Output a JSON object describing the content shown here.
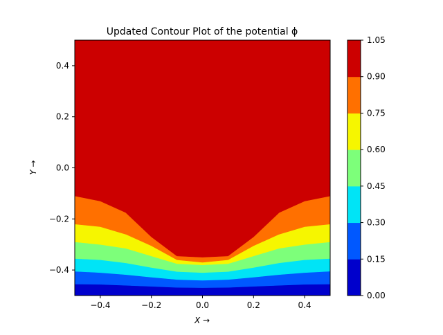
{
  "chart_data": {
    "type": "contour",
    "title": "Updated Contour Plot of the potential ϕ",
    "xlabel": "X →",
    "ylabel": "Y →",
    "xlim": [
      -0.5,
      0.5
    ],
    "ylim": [
      -0.5,
      0.5
    ],
    "x_ticks": [
      -0.4,
      -0.2,
      0.0,
      0.2,
      0.4
    ],
    "x_tick_labels": [
      "−0.4",
      "−0.2",
      "0.0",
      "0.2",
      "0.4"
    ],
    "y_ticks": [
      -0.4,
      -0.2,
      0.0,
      0.2,
      0.4
    ],
    "y_tick_labels": [
      "−0.4",
      "−0.2",
      "0.0",
      "0.2",
      "0.4"
    ],
    "levels": [
      0.0,
      0.15,
      0.3,
      0.45,
      0.6,
      0.75,
      0.9,
      1.05
    ],
    "level_labels": [
      "0.00",
      "0.15",
      "0.30",
      "0.45",
      "0.60",
      "0.75",
      "0.90",
      "1.05"
    ],
    "band_colors": [
      "#0000cc",
      "#0058ff",
      "#00e4f6",
      "#7dff7a",
      "#f6f600",
      "#ff7000",
      "#cc0000"
    ],
    "boundary_x": [
      -0.5,
      -0.4,
      -0.3,
      -0.2,
      -0.1,
      0.0,
      0.1,
      0.2,
      0.3,
      0.4,
      0.5
    ],
    "contour_boundaries": [
      {
        "level": 0.15,
        "y": [
          -0.455,
          -0.456,
          -0.46,
          -0.464,
          -0.468,
          -0.469,
          -0.468,
          -0.464,
          -0.46,
          -0.456,
          -0.455
        ]
      },
      {
        "level": 0.3,
        "y": [
          -0.405,
          -0.41,
          -0.418,
          -0.428,
          -0.437,
          -0.44,
          -0.437,
          -0.428,
          -0.418,
          -0.41,
          -0.405
        ]
      },
      {
        "level": 0.45,
        "y": [
          -0.355,
          -0.36,
          -0.372,
          -0.39,
          -0.406,
          -0.41,
          -0.406,
          -0.39,
          -0.372,
          -0.36,
          -0.355
        ]
      },
      {
        "level": 0.6,
        "y": [
          -0.29,
          -0.3,
          -0.315,
          -0.345,
          -0.375,
          -0.38,
          -0.375,
          -0.345,
          -0.315,
          -0.3,
          -0.29
        ]
      },
      {
        "level": 0.75,
        "y": [
          -0.22,
          -0.23,
          -0.26,
          -0.305,
          -0.36,
          -0.37,
          -0.36,
          -0.305,
          -0.26,
          -0.23,
          -0.22
        ]
      },
      {
        "level": 0.9,
        "y": [
          -0.11,
          -0.13,
          -0.175,
          -0.27,
          -0.345,
          -0.35,
          -0.345,
          -0.27,
          -0.175,
          -0.13,
          -0.11
        ]
      }
    ]
  }
}
